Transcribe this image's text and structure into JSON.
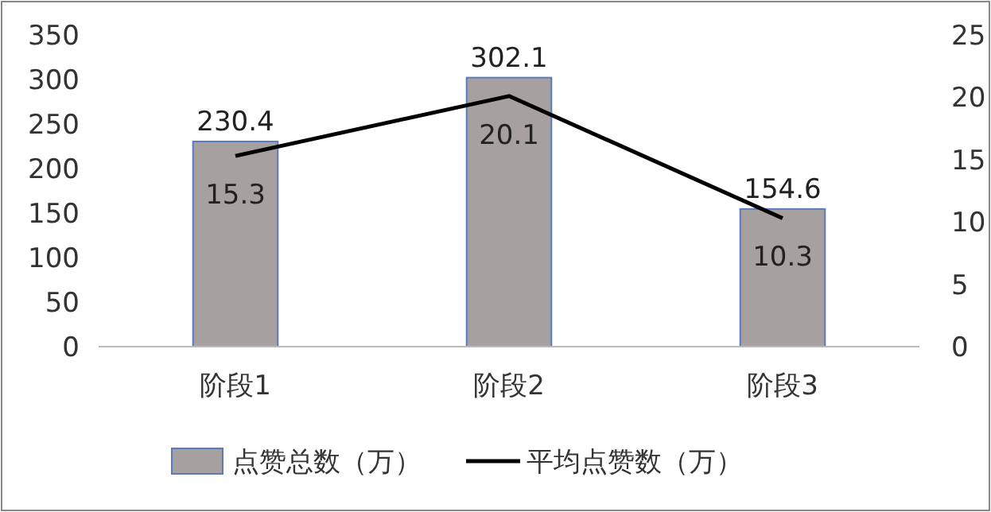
{
  "chart_data": {
    "type": "bar",
    "categories": [
      "阶段1",
      "阶段2",
      "阶段3"
    ],
    "series": [
      {
        "name": "点赞总数（万）",
        "color": "#a6a0a0",
        "values": [
          230.4,
          302.1,
          154.6
        ]
      },
      {
        "name": "平均点赞数（万）",
        "type": "line",
        "axis": "y2",
        "color": "#000000",
        "values": [
          15.3,
          20.1,
          10.3
        ]
      }
    ],
    "ylim": [
      0,
      350
    ],
    "yticks": [
      0,
      50,
      100,
      150,
      200,
      250,
      300,
      350
    ],
    "y2lim": [
      0,
      25
    ],
    "y2ticks": [
      0,
      5,
      10,
      15,
      20,
      25
    ],
    "data_labels": true,
    "legend": "bottom",
    "grid": false,
    "marker": "none",
    "line_style": "solid"
  }
}
